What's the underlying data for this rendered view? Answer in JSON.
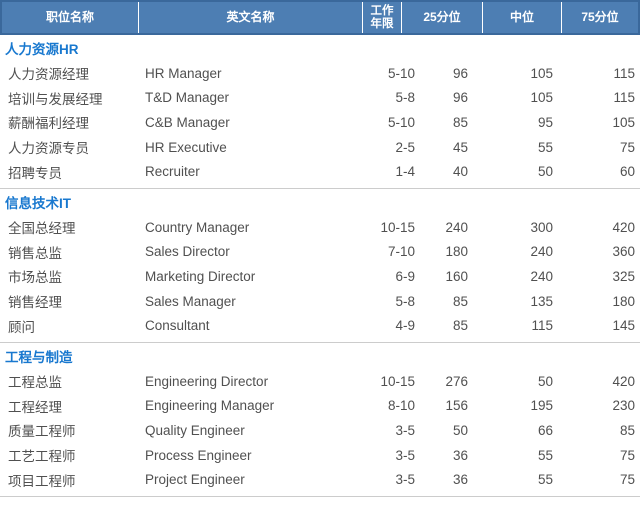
{
  "table": {
    "columns": [
      {
        "label": "职位名称"
      },
      {
        "label": "英文名称"
      },
      {
        "label": "工作年限",
        "label_line1": "工作",
        "label_line2": "年限"
      },
      {
        "label": "25分位"
      },
      {
        "label": "中位"
      },
      {
        "label": "75分位"
      }
    ],
    "sections": [
      {
        "title": "人力资源HR",
        "rows": [
          [
            "人力资源经理",
            "HR Manager",
            "5-10",
            "96",
            "105",
            "115"
          ],
          [
            "培训与发展经理",
            "T&D Manager",
            "5-8",
            "96",
            "105",
            "115"
          ],
          [
            "薪酬福利经理",
            "C&B Manager",
            "5-10",
            "85",
            "95",
            "105"
          ],
          [
            "人力资源专员",
            "HR Executive",
            "2-5",
            "45",
            "55",
            "75"
          ],
          [
            "招聘专员",
            "Recruiter",
            "1-4",
            "40",
            "50",
            "60"
          ]
        ]
      },
      {
        "title": "信息技术IT",
        "rows": [
          [
            "全国总经理",
            "Country Manager",
            "10-15",
            "240",
            "300",
            "420"
          ],
          [
            "销售总监",
            "Sales Director",
            "7-10",
            "180",
            "240",
            "360"
          ],
          [
            "市场总监",
            "Marketing Director",
            "6-9",
            "160",
            "240",
            "325"
          ],
          [
            "销售经理",
            "Sales Manager",
            "5-8",
            "85",
            "135",
            "180"
          ],
          [
            "顾问",
            "Consultant",
            "4-9",
            "85",
            "115",
            "145"
          ]
        ]
      },
      {
        "title": "工程与制造",
        "rows": [
          [
            "工程总监",
            "Engineering Director",
            "10-15",
            "276",
            "50",
            "420"
          ],
          [
            "工程经理",
            "Engineering Manager",
            "8-10",
            "156",
            "195",
            "230"
          ],
          [
            "质量工程师",
            "Quality Engineer",
            "3-5",
            "50",
            "66",
            "85"
          ],
          [
            "工艺工程师",
            "Process Engineer",
            "3-5",
            "36",
            "55",
            "75"
          ],
          [
            "项目工程师",
            "Project Engineer",
            "3-5",
            "36",
            "55",
            "75"
          ]
        ]
      }
    ]
  },
  "colors": {
    "header_bg": "#4d7eb3",
    "header_border": "#3a689b",
    "header_divider": "#ffffff",
    "section_title": "#1878cf",
    "body_text": "#505050",
    "divider_line": "#cccccc"
  }
}
